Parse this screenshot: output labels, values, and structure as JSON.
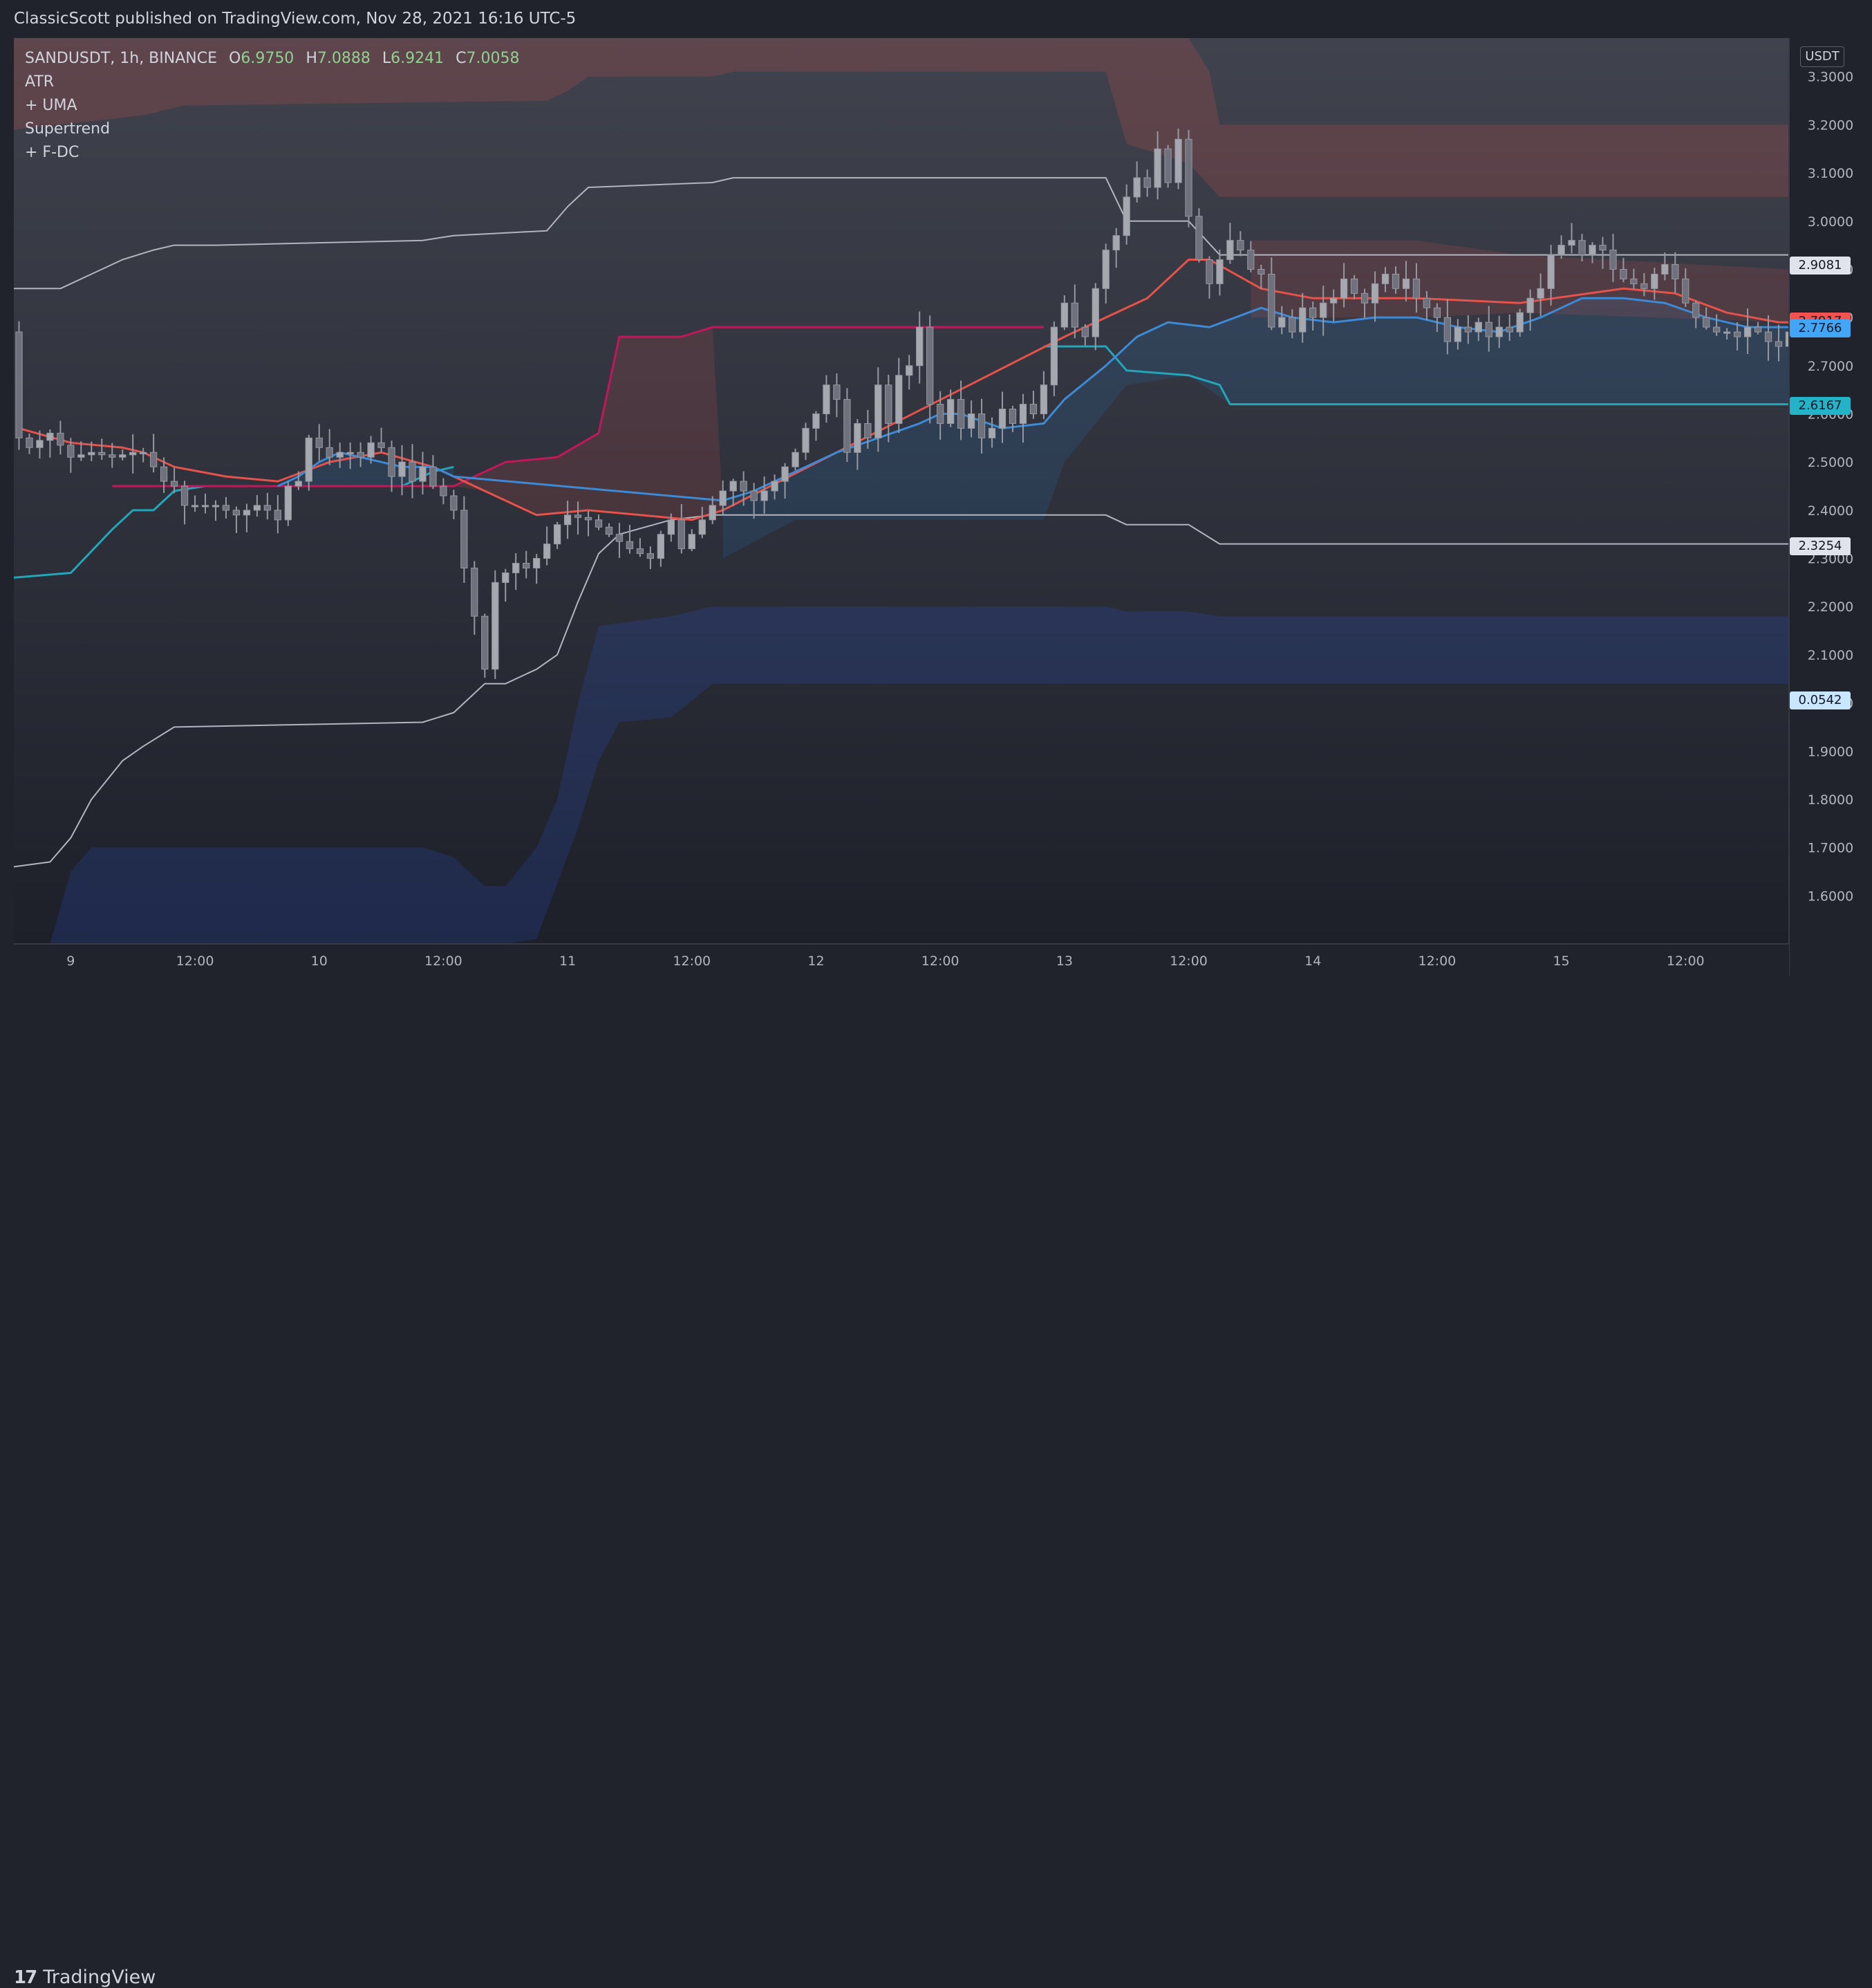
{
  "header": {
    "publish_info": "ClassicScott published on TradingView.com, Nov 28, 2021 16:16 UTC-5"
  },
  "legend": {
    "symbol": "SANDUSDT, 1h, BINANCE",
    "open_key": "O",
    "open": "6.9750",
    "high_key": "H",
    "high": "7.0888",
    "low_key": "L",
    "low": "6.9241",
    "close_key": "C",
    "close": "7.0058",
    "indicators": [
      "ATR",
      "+ UMA",
      "Supertrend",
      "+ F-DC"
    ]
  },
  "footer": {
    "brand": "TradingView",
    "logo": "17"
  },
  "price_scale": {
    "currency": "USDT",
    "ticks": [
      "3.3000",
      "3.2000",
      "3.1000",
      "3.0000",
      "2.9000",
      "2.8000",
      "2.7000",
      "2.6000",
      "2.5000",
      "2.4000",
      "2.3000",
      "2.2000",
      "2.1000",
      "2.0000",
      "1.9000",
      "1.8000",
      "1.7000",
      "1.6000"
    ]
  },
  "price_tags": [
    {
      "label": "2.9081",
      "value": 2.9081,
      "color": "#e0e3eb"
    },
    {
      "label": "2.7917",
      "value": 2.7917,
      "color": "#f05350"
    },
    {
      "label": "2.7766",
      "value": 2.7766,
      "color": "#42a5f5"
    },
    {
      "label": "2.6167",
      "value": 2.6167,
      "color": "#22b3c9"
    },
    {
      "label": "2.3254",
      "value": 2.3254,
      "color": "#e0e3eb"
    },
    {
      "label": "0.0542",
      "value": 2.0058,
      "color": "#c8e6ff"
    }
  ],
  "chart_data": {
    "type": "candlestick",
    "title": "SANDUSDT, 1h, BINANCE",
    "x_ticks": [
      {
        "label": "9",
        "hour": 10
      },
      {
        "label": "12:00",
        "hour": 22
      },
      {
        "label": "10",
        "hour": 34
      },
      {
        "label": "12:00",
        "hour": 46
      },
      {
        "label": "11",
        "hour": 58
      },
      {
        "label": "12:00",
        "hour": 70
      },
      {
        "label": "12",
        "hour": 82
      },
      {
        "label": "12:00",
        "hour": 94
      },
      {
        "label": "13",
        "hour": 106
      },
      {
        "label": "12:00",
        "hour": 118
      },
      {
        "label": "14",
        "hour": 130
      },
      {
        "label": "12:00",
        "hour": 142
      },
      {
        "label": "15",
        "hour": 154
      },
      {
        "label": "12:00",
        "hour": 166
      }
    ],
    "x_range": [
      4.5,
      176
    ],
    "ylim": [
      1.5,
      3.38
    ],
    "scale": "linear",
    "grid": false,
    "close_anchors": [
      [
        5,
        2.55
      ],
      [
        6,
        2.53
      ],
      [
        8,
        2.56
      ],
      [
        10,
        2.51
      ],
      [
        12,
        2.52
      ],
      [
        14,
        2.51
      ],
      [
        16,
        2.52
      ],
      [
        17,
        2.52
      ],
      [
        19,
        2.46
      ],
      [
        20,
        2.45
      ],
      [
        21,
        2.41
      ],
      [
        22,
        2.41
      ],
      [
        24,
        2.41
      ],
      [
        26,
        2.39
      ],
      [
        28,
        2.41
      ],
      [
        29,
        2.4
      ],
      [
        30,
        2.38
      ],
      [
        31,
        2.45
      ],
      [
        32,
        2.46
      ],
      [
        33,
        2.55
      ],
      [
        34,
        2.53
      ],
      [
        35,
        2.51
      ],
      [
        36,
        2.52
      ],
      [
        37,
        2.52
      ],
      [
        38,
        2.51
      ],
      [
        39,
        2.54
      ],
      [
        40,
        2.53
      ],
      [
        41,
        2.47
      ],
      [
        42,
        2.5
      ],
      [
        43,
        2.46
      ],
      [
        44,
        2.49
      ],
      [
        45,
        2.45
      ],
      [
        46,
        2.43
      ],
      [
        47,
        2.4
      ],
      [
        48,
        2.28
      ],
      [
        49,
        2.18
      ],
      [
        50,
        2.07
      ],
      [
        51,
        2.25
      ],
      [
        52,
        2.27
      ],
      [
        53,
        2.29
      ],
      [
        54,
        2.28
      ],
      [
        55,
        2.3
      ],
      [
        56,
        2.33
      ],
      [
        57,
        2.37
      ],
      [
        58,
        2.39
      ],
      [
        60,
        2.38
      ],
      [
        62,
        2.35
      ],
      [
        64,
        2.32
      ],
      [
        66,
        2.3
      ],
      [
        67,
        2.35
      ],
      [
        68,
        2.38
      ],
      [
        69,
        2.32
      ],
      [
        70,
        2.35
      ],
      [
        71,
        2.38
      ],
      [
        72,
        2.41
      ],
      [
        73,
        2.44
      ],
      [
        74,
        2.46
      ],
      [
        75,
        2.44
      ],
      [
        76,
        2.42
      ],
      [
        77,
        2.44
      ],
      [
        78,
        2.46
      ],
      [
        79,
        2.49
      ],
      [
        80,
        2.52
      ],
      [
        81,
        2.57
      ],
      [
        82,
        2.6
      ],
      [
        83,
        2.66
      ],
      [
        84,
        2.63
      ],
      [
        85,
        2.52
      ],
      [
        86,
        2.58
      ],
      [
        87,
        2.55
      ],
      [
        88,
        2.66
      ],
      [
        89,
        2.58
      ],
      [
        90,
        2.68
      ],
      [
        91,
        2.7
      ],
      [
        92,
        2.78
      ],
      [
        93,
        2.62
      ],
      [
        94,
        2.58
      ],
      [
        95,
        2.63
      ],
      [
        96,
        2.57
      ],
      [
        97,
        2.6
      ],
      [
        98,
        2.55
      ],
      [
        99,
        2.57
      ],
      [
        100,
        2.61
      ],
      [
        101,
        2.58
      ],
      [
        102,
        2.62
      ],
      [
        103,
        2.6
      ],
      [
        104,
        2.66
      ],
      [
        105,
        2.78
      ],
      [
        106,
        2.83
      ],
      [
        107,
        2.78
      ],
      [
        108,
        2.76
      ],
      [
        109,
        2.86
      ],
      [
        110,
        2.94
      ],
      [
        111,
        2.97
      ],
      [
        112,
        3.05
      ],
      [
        113,
        3.09
      ],
      [
        114,
        3.07
      ],
      [
        115,
        3.15
      ],
      [
        116,
        3.08
      ],
      [
        117,
        3.17
      ],
      [
        118,
        3.01
      ],
      [
        119,
        2.92
      ],
      [
        120,
        2.87
      ],
      [
        121,
        2.92
      ],
      [
        122,
        2.96
      ],
      [
        123,
        2.94
      ],
      [
        124,
        2.9
      ],
      [
        125,
        2.89
      ],
      [
        126,
        2.78
      ],
      [
        127,
        2.8
      ],
      [
        128,
        2.77
      ],
      [
        129,
        2.82
      ],
      [
        130,
        2.8
      ],
      [
        131,
        2.83
      ],
      [
        132,
        2.84
      ],
      [
        133,
        2.88
      ],
      [
        134,
        2.85
      ],
      [
        135,
        2.83
      ],
      [
        136,
        2.87
      ],
      [
        137,
        2.89
      ],
      [
        138,
        2.86
      ],
      [
        139,
        2.88
      ],
      [
        140,
        2.84
      ],
      [
        141,
        2.82
      ],
      [
        142,
        2.8
      ],
      [
        143,
        2.75
      ],
      [
        144,
        2.78
      ],
      [
        145,
        2.77
      ],
      [
        146,
        2.79
      ],
      [
        147,
        2.76
      ],
      [
        148,
        2.78
      ],
      [
        149,
        2.77
      ],
      [
        150,
        2.81
      ],
      [
        151,
        2.84
      ],
      [
        152,
        2.86
      ],
      [
        153,
        2.93
      ],
      [
        154,
        2.95
      ],
      [
        155,
        2.96
      ],
      [
        156,
        2.93
      ],
      [
        157,
        2.95
      ],
      [
        158,
        2.94
      ],
      [
        159,
        2.9
      ],
      [
        160,
        2.88
      ],
      [
        161,
        2.87
      ],
      [
        162,
        2.86
      ],
      [
        163,
        2.89
      ],
      [
        164,
        2.91
      ],
      [
        165,
        2.88
      ],
      [
        166,
        2.83
      ],
      [
        167,
        2.8
      ],
      [
        168,
        2.78
      ],
      [
        169,
        2.77
      ],
      [
        170,
        2.77
      ],
      [
        171,
        2.76
      ],
      [
        172,
        2.78
      ],
      [
        173,
        2.77
      ],
      [
        174,
        2.75
      ],
      [
        175,
        2.74
      ],
      [
        176,
        2.77
      ]
    ],
    "uma_red": [
      [
        5,
        2.57
      ],
      [
        10,
        2.54
      ],
      [
        15,
        2.53
      ],
      [
        17,
        2.52
      ],
      [
        20,
        2.49
      ],
      [
        25,
        2.47
      ],
      [
        30,
        2.46
      ],
      [
        35,
        2.5
      ],
      [
        40,
        2.52
      ],
      [
        45,
        2.49
      ],
      [
        50,
        2.44
      ],
      [
        55,
        2.39
      ],
      [
        60,
        2.4
      ],
      [
        65,
        2.39
      ],
      [
        70,
        2.38
      ],
      [
        73,
        2.4
      ],
      [
        106,
        2.76
      ],
      [
        114,
        2.84
      ],
      [
        116,
        2.88
      ],
      [
        118,
        2.92
      ],
      [
        120,
        2.92
      ],
      [
        125,
        2.86
      ],
      [
        130,
        2.84
      ],
      [
        140,
        2.84
      ],
      [
        150,
        2.83
      ],
      [
        160,
        2.86
      ],
      [
        165,
        2.85
      ],
      [
        170,
        2.81
      ],
      [
        175,
        2.79
      ],
      [
        176,
        2.79
      ]
    ],
    "uma_blue": [
      [
        30,
        2.45
      ],
      [
        32,
        2.47
      ],
      [
        34,
        2.5
      ],
      [
        36,
        2.52
      ],
      [
        38,
        2.51
      ],
      [
        40,
        2.5
      ],
      [
        42,
        2.49
      ],
      [
        45,
        2.49
      ],
      [
        47,
        2.47
      ],
      [
        73,
        2.42
      ],
      [
        76,
        2.44
      ],
      [
        80,
        2.48
      ],
      [
        84,
        2.52
      ],
      [
        88,
        2.55
      ],
      [
        92,
        2.58
      ],
      [
        94,
        2.6
      ],
      [
        96,
        2.6
      ],
      [
        100,
        2.57
      ],
      [
        104,
        2.58
      ],
      [
        106,
        2.63
      ],
      [
        110,
        2.7
      ],
      [
        113,
        2.76
      ],
      [
        116,
        2.79
      ],
      [
        120,
        2.78
      ],
      [
        125,
        2.82
      ],
      [
        128,
        2.8
      ],
      [
        132,
        2.79
      ],
      [
        136,
        2.8
      ],
      [
        140,
        2.8
      ],
      [
        144,
        2.78
      ],
      [
        148,
        2.77
      ],
      [
        152,
        2.8
      ],
      [
        156,
        2.84
      ],
      [
        160,
        2.84
      ],
      [
        164,
        2.83
      ],
      [
        168,
        2.8
      ],
      [
        172,
        2.78
      ],
      [
        176,
        2.78
      ]
    ],
    "supertrend_teal": [
      [
        4.5,
        2.26
      ],
      [
        10,
        2.27
      ],
      [
        14,
        2.36
      ],
      [
        16,
        2.4
      ],
      [
        18,
        2.4
      ],
      [
        20,
        2.44
      ],
      [
        23,
        2.45
      ],
      [
        30,
        2.45
      ],
      [
        42,
        2.45
      ],
      [
        45,
        2.48
      ],
      [
        47,
        2.49
      ]
    ],
    "supertrend_red": [
      [
        14,
        2.45
      ],
      [
        47,
        2.45
      ],
      [
        52,
        2.5
      ],
      [
        57,
        2.51
      ],
      [
        61,
        2.56
      ],
      [
        63,
        2.76
      ],
      [
        69,
        2.76
      ],
      [
        72,
        2.78
      ],
      [
        104,
        2.78
      ]
    ],
    "supertrend_teal2": [
      [
        104,
        2.74
      ],
      [
        110,
        2.74
      ],
      [
        112,
        2.69
      ],
      [
        118,
        2.68
      ],
      [
        121,
        2.66
      ],
      [
        122,
        2.62
      ],
      [
        176,
        2.62
      ]
    ],
    "fdc_upper": [
      [
        4.5,
        2.86
      ],
      [
        9,
        2.86
      ],
      [
        12,
        2.89
      ],
      [
        15,
        2.92
      ],
      [
        18,
        2.94
      ],
      [
        20,
        2.95
      ],
      [
        24,
        2.95
      ],
      [
        44,
        2.96
      ],
      [
        47,
        2.97
      ],
      [
        56,
        2.98
      ],
      [
        58,
        3.03
      ],
      [
        60,
        3.07
      ],
      [
        72,
        3.08
      ],
      [
        74,
        3.09
      ],
      [
        110,
        3.09
      ],
      [
        112,
        3.0
      ],
      [
        118,
        3.0
      ],
      [
        121,
        2.93
      ],
      [
        176,
        2.93
      ]
    ],
    "fdc_lower": [
      [
        4.5,
        1.66
      ],
      [
        8,
        1.67
      ],
      [
        10,
        1.72
      ],
      [
        12,
        1.8
      ],
      [
        15,
        1.88
      ],
      [
        17,
        1.91
      ],
      [
        20,
        1.95
      ],
      [
        44,
        1.96
      ],
      [
        47,
        1.98
      ],
      [
        50,
        2.04
      ],
      [
        52,
        2.04
      ],
      [
        55,
        2.07
      ],
      [
        57,
        2.1
      ],
      [
        59,
        2.21
      ],
      [
        61,
        2.31
      ],
      [
        63,
        2.35
      ],
      [
        68,
        2.38
      ],
      [
        72,
        2.39
      ],
      [
        110,
        2.39
      ],
      [
        112,
        2.37
      ],
      [
        118,
        2.37
      ],
      [
        121,
        2.33
      ],
      [
        176,
        2.33
      ]
    ],
    "band_red_top": [
      [
        4.5,
        3.38
      ],
      [
        110,
        3.38
      ],
      [
        111,
        3.38
      ],
      [
        118,
        3.38
      ],
      [
        120,
        3.31
      ],
      [
        121,
        3.2
      ],
      [
        176,
        3.2
      ]
    ],
    "band_red_bottom": [
      [
        4.5,
        3.19
      ],
      [
        13,
        3.21
      ],
      [
        17,
        3.22
      ],
      [
        21,
        3.24
      ],
      [
        56,
        3.25
      ],
      [
        58,
        3.27
      ],
      [
        60,
        3.3
      ],
      [
        72,
        3.3
      ],
      [
        74,
        3.31
      ],
      [
        110,
        3.31
      ],
      [
        112,
        3.16
      ],
      [
        118,
        3.12
      ],
      [
        121,
        3.05
      ],
      [
        176,
        3.05
      ]
    ],
    "band_blue_top": [
      [
        4.5,
        1.5
      ],
      [
        8,
        1.5
      ],
      [
        10,
        1.65
      ],
      [
        12,
        1.7
      ],
      [
        44,
        1.7
      ],
      [
        47,
        1.68
      ],
      [
        50,
        1.62
      ],
      [
        52,
        1.62
      ],
      [
        55,
        1.7
      ],
      [
        57,
        1.8
      ],
      [
        59,
        2.0
      ],
      [
        61,
        2.16
      ],
      [
        68,
        2.18
      ],
      [
        72,
        2.2
      ],
      [
        110,
        2.2
      ],
      [
        112,
        2.19
      ],
      [
        118,
        2.19
      ],
      [
        121,
        2.18
      ],
      [
        176,
        2.18
      ]
    ],
    "band_blue_bottom": [
      [
        4.5,
        1.5
      ],
      [
        44,
        1.5
      ],
      [
        52,
        1.5
      ],
      [
        55,
        1.51
      ],
      [
        59,
        1.74
      ],
      [
        61,
        1.88
      ],
      [
        63,
        1.96
      ],
      [
        68,
        1.97
      ],
      [
        72,
        2.04
      ],
      [
        176,
        2.04
      ]
    ]
  }
}
